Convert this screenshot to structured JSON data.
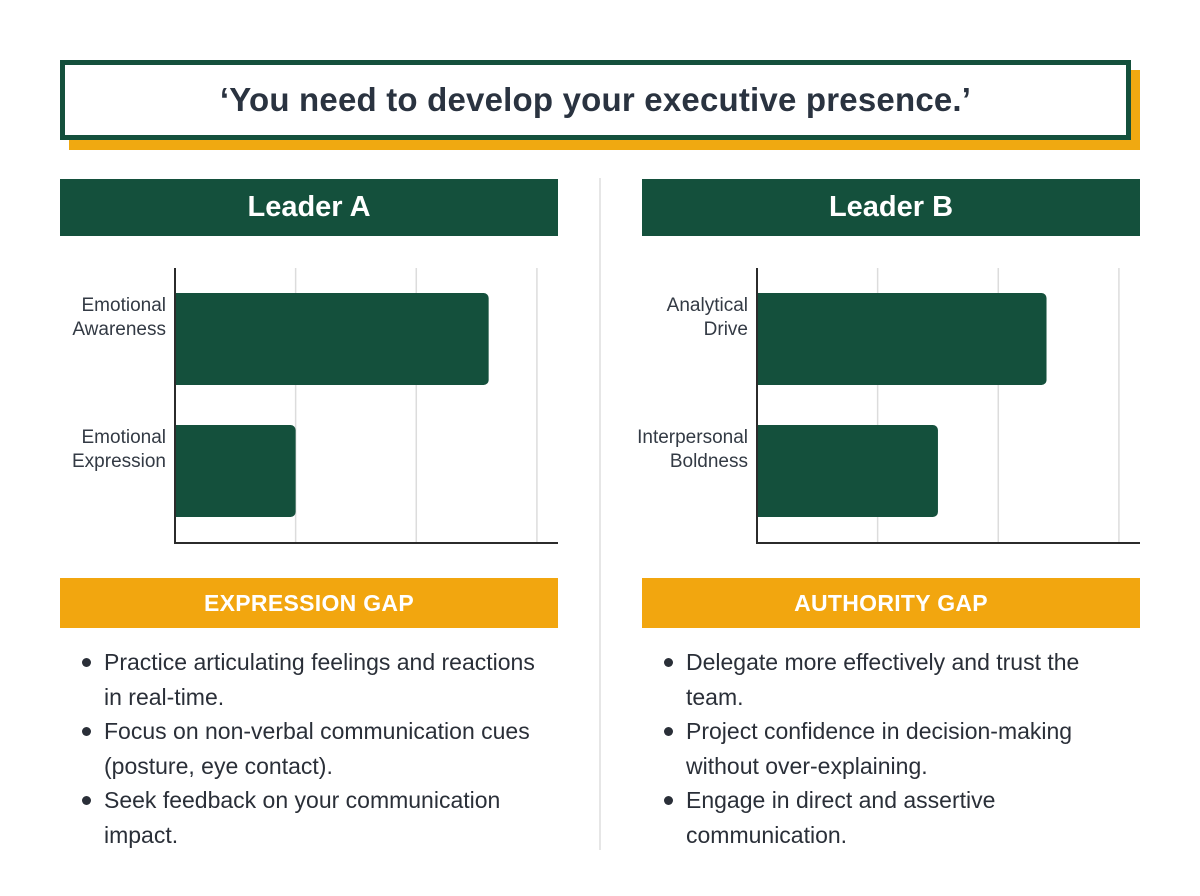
{
  "quote": "‘You need to develop your executive presence.’",
  "colors": {
    "primary_green": "#14503c",
    "accent_gold": "#f2a60f",
    "quote_text": "#2a3340"
  },
  "panels": [
    {
      "title": "Leader A",
      "gap_title": "EXPRESSION GAP",
      "bullets": [
        "Practice articulating feelings and reactions in real-time.",
        "Focus on non-verbal communication cues (posture, eye contact).",
        "Seek feedback on your communication impact."
      ]
    },
    {
      "title": "Leader B",
      "gap_title": "AUTHORITY GAP",
      "bullets": [
        "Delegate more effectively and trust the team.",
        "Project confidence in decision-making without over-explaining.",
        "Engage in direct and assertive communication."
      ]
    }
  ],
  "chart_data": [
    {
      "type": "bar",
      "orientation": "horizontal",
      "title": "Leader A",
      "categories": [
        [
          "Emotional",
          "Awareness"
        ],
        [
          "Emotional",
          "Expression"
        ]
      ],
      "values": [
        2.6,
        1.0
      ],
      "xlim": [
        0,
        3.15
      ],
      "grid": true,
      "tick_labels_shown": false,
      "color": "#14503c"
    },
    {
      "type": "bar",
      "orientation": "horizontal",
      "title": "Leader B",
      "categories": [
        [
          "Analytical",
          "Drive"
        ],
        [
          "Interpersonal",
          "Boldness"
        ]
      ],
      "values": [
        2.4,
        1.5
      ],
      "xlim": [
        0,
        3.15
      ],
      "grid": true,
      "tick_labels_shown": false,
      "color": "#14503c"
    }
  ]
}
